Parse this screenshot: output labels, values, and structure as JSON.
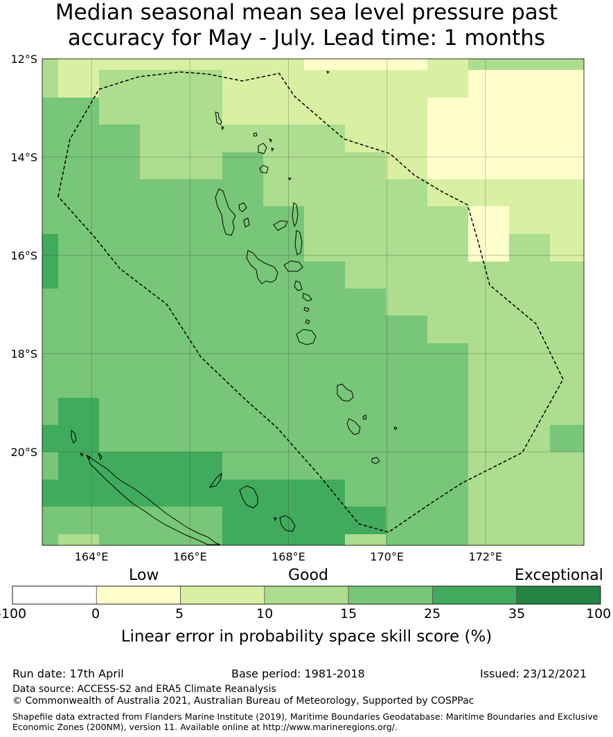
{
  "title": {
    "line1": "Median seasonal mean sea level pressure past",
    "line2": "accuracy for May - July. Lead time: 1 months"
  },
  "map": {
    "lon_range": [
      163,
      174
    ],
    "lat_range": [
      -21.9,
      -12
    ],
    "lon_ticks": [
      "164°E",
      "166°E",
      "168°E",
      "170°E",
      "172°E"
    ],
    "lat_ticks": [
      "12°S",
      "14°S",
      "16°S",
      "18°S",
      "20°S"
    ],
    "cell_values": [
      [
        3,
        3,
        3,
        3,
        2,
        2,
        2,
        2,
        2,
        2,
        2,
        2,
        2,
        1,
        1,
        2,
        2,
        2,
        2,
        2,
        2,
        2,
        2,
        2,
        2,
        2,
        2,
        2,
        2,
        2,
        2,
        2,
        2,
        2,
        2,
        2,
        2,
        2,
        1,
        1,
        1,
        1,
        1,
        1,
        1,
        1,
        1,
        1,
        1,
        1,
        1,
        1,
        1,
        1,
        1,
        1,
        1,
        2,
        2,
        2,
        2,
        2,
        2,
        2,
        2,
        2,
        2,
        2,
        2,
        2,
        2,
        2,
        2,
        2,
        2,
        2,
        2,
        2,
        2,
        2
      ],
      [
        3,
        3,
        3,
        3,
        2,
        2,
        2,
        2,
        2,
        2,
        2,
        2,
        2,
        1,
        1,
        2,
        2,
        2,
        2,
        2,
        2,
        2,
        2,
        2,
        2,
        2,
        2,
        2,
        2,
        2,
        2,
        2,
        2,
        2,
        2,
        2,
        2,
        2,
        1,
        1,
        1,
        1,
        1,
        1,
        1,
        1,
        1,
        1,
        1,
        1,
        1,
        1,
        1,
        1,
        1,
        1,
        1,
        2,
        2,
        2,
        2,
        2,
        2,
        2,
        2,
        2,
        2,
        2,
        2,
        2,
        2,
        2,
        2,
        2,
        2,
        2,
        2,
        2,
        2,
        2
      ],
      [
        3,
        3,
        3,
        3,
        2,
        2,
        2,
        2,
        2,
        2,
        2,
        2,
        2,
        1,
        1,
        2,
        2,
        2,
        2,
        2,
        2,
        2,
        2,
        2,
        2,
        2,
        2,
        2,
        2,
        2,
        2,
        2,
        2,
        2,
        2,
        2,
        2,
        2,
        1,
        1,
        1,
        1,
        1,
        1,
        1,
        1,
        1,
        1,
        1,
        1,
        1,
        1,
        1,
        1,
        1,
        1,
        1,
        2,
        2,
        2,
        2,
        2,
        2,
        2,
        2,
        2,
        2,
        2,
        2,
        2,
        2,
        2,
        2,
        2,
        2,
        2,
        2,
        2,
        2,
        2
      ],
      [
        3,
        3,
        3,
        3,
        2,
        2,
        2,
        2,
        2,
        2,
        2,
        2,
        2,
        1,
        1,
        2,
        2,
        2,
        2,
        2,
        2,
        2,
        2,
        2,
        2,
        2,
        2,
        2,
        2,
        2,
        2,
        2,
        2,
        2,
        2,
        2,
        2,
        2,
        1,
        1,
        1,
        1,
        1,
        1,
        1,
        1,
        1,
        1,
        1,
        1,
        1,
        1,
        1,
        1,
        1,
        1,
        1,
        2,
        2,
        2,
        2,
        2,
        2,
        2,
        2,
        2,
        2,
        2,
        2,
        2,
        2,
        2,
        2,
        2,
        2,
        2,
        2,
        2,
        2,
        2
      ]
    ],
    "skill_grid_note_unused": ""
  },
  "legend": {
    "words": {
      "low": "Low",
      "good": "Good",
      "exceptional": "Exceptional"
    },
    "ticks": [
      "-100",
      "0",
      "5",
      "10",
      "15",
      "25",
      "35",
      "100"
    ],
    "colors": [
      "#ffffff",
      "#ffffcc",
      "#d9f0a3",
      "#addd8e",
      "#78c679",
      "#41ab5d",
      "#238443"
    ],
    "label": "Linear error in probability space skill score (%)"
  },
  "footer": {
    "run_date": "Run date: 17th April",
    "base_period": "Base period: 1981-2018",
    "issued": "Issued: 23/12/2021",
    "data_source": "Data source: ACCESS-S2 and ERA5 Climate Reanalysis",
    "copyright": "© Commonwealth of Australia 2021, Australian Bureau of Meteorology, Supported by COSPPac",
    "shapefile_line1": "Shapefile data extracted from Flanders Marine Institute (2019), Maritime Boundaries Geodatabase: Maritime Boundaries and Exclusive",
    "shapefile_line2": "Economic Zones (200NM), version 11. Available online at http://www.marineregions.org/."
  }
}
